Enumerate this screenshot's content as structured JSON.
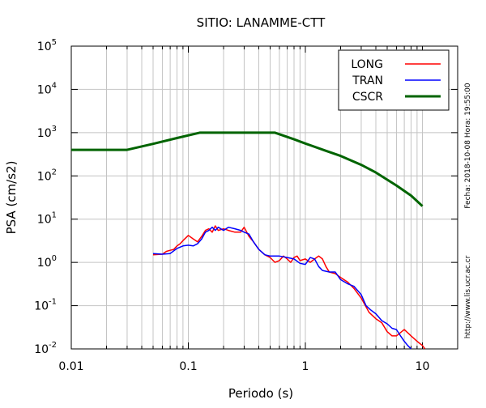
{
  "chart_data": {
    "type": "line",
    "title": "SITIO: LANAMME-CTT",
    "xlabel": "Periodo (s)",
    "ylabel": "PSA (cm/s2)",
    "x_scale": "log",
    "y_scale": "log",
    "xlim": [
      0.01,
      20
    ],
    "ylim": [
      0.01,
      100000
    ],
    "grid": true,
    "legend_position": "top-right",
    "x_ticks": [
      {
        "value": 0.01,
        "label": "0.01"
      },
      {
        "value": 0.1,
        "label": "0.1"
      },
      {
        "value": 1,
        "label": "1"
      },
      {
        "value": 10,
        "label": "10"
      }
    ],
    "y_ticks": [
      {
        "value": 0.01,
        "base": "10",
        "exp": "-2"
      },
      {
        "value": 0.1,
        "base": "10",
        "exp": "-1"
      },
      {
        "value": 1,
        "base": "10",
        "exp": "0"
      },
      {
        "value": 10,
        "base": "10",
        "exp": "1"
      },
      {
        "value": 100,
        "base": "10",
        "exp": "2"
      },
      {
        "value": 1000,
        "base": "10",
        "exp": "3"
      },
      {
        "value": 10000,
        "base": "10",
        "exp": "4"
      },
      {
        "value": 100000,
        "base": "10",
        "exp": "5"
      }
    ],
    "side_texts": [
      "Fecha: 2018-10-08 Hora: 19:55:00",
      "http://www.lis.ucr.ac.cr"
    ],
    "series": [
      {
        "name": "LONG",
        "color": "#ff0000",
        "width": 1.5,
        "points": [
          [
            0.05,
            1.5
          ],
          [
            0.06,
            1.55
          ],
          [
            0.065,
            1.8
          ],
          [
            0.07,
            1.9
          ],
          [
            0.075,
            2.0
          ],
          [
            0.08,
            2.4
          ],
          [
            0.085,
            2.7
          ],
          [
            0.09,
            3.2
          ],
          [
            0.1,
            4.2
          ],
          [
            0.11,
            3.5
          ],
          [
            0.12,
            3.0
          ],
          [
            0.13,
            4.0
          ],
          [
            0.14,
            5.5
          ],
          [
            0.15,
            6.0
          ],
          [
            0.16,
            5.0
          ],
          [
            0.17,
            7.0
          ],
          [
            0.18,
            5.5
          ],
          [
            0.2,
            6.0
          ],
          [
            0.22,
            5.5
          ],
          [
            0.25,
            5.0
          ],
          [
            0.28,
            5.0
          ],
          [
            0.3,
            6.5
          ],
          [
            0.33,
            4.0
          ],
          [
            0.36,
            3.0
          ],
          [
            0.4,
            2.0
          ],
          [
            0.45,
            1.5
          ],
          [
            0.5,
            1.3
          ],
          [
            0.55,
            1.0
          ],
          [
            0.6,
            1.1
          ],
          [
            0.65,
            1.4
          ],
          [
            0.7,
            1.2
          ],
          [
            0.75,
            1.0
          ],
          [
            0.8,
            1.3
          ],
          [
            0.85,
            1.4
          ],
          [
            0.9,
            1.1
          ],
          [
            1.0,
            1.2
          ],
          [
            1.1,
            1.0
          ],
          [
            1.2,
            1.2
          ],
          [
            1.3,
            1.4
          ],
          [
            1.4,
            1.2
          ],
          [
            1.5,
            0.8
          ],
          [
            1.6,
            0.6
          ],
          [
            1.8,
            0.55
          ],
          [
            2.0,
            0.45
          ],
          [
            2.3,
            0.35
          ],
          [
            2.6,
            0.25
          ],
          [
            3.0,
            0.15
          ],
          [
            3.5,
            0.07
          ],
          [
            4.0,
            0.05
          ],
          [
            4.5,
            0.04
          ],
          [
            5.0,
            0.025
          ],
          [
            5.5,
            0.02
          ],
          [
            6.0,
            0.02
          ],
          [
            7.0,
            0.028
          ],
          [
            8.0,
            0.02
          ],
          [
            9.0,
            0.015
          ],
          [
            10.0,
            0.012
          ],
          [
            10.5,
            0.01
          ]
        ]
      },
      {
        "name": "TRAN",
        "color": "#0000ff",
        "width": 1.5,
        "points": [
          [
            0.05,
            1.6
          ],
          [
            0.06,
            1.55
          ],
          [
            0.07,
            1.6
          ],
          [
            0.08,
            2.1
          ],
          [
            0.09,
            2.4
          ],
          [
            0.1,
            2.5
          ],
          [
            0.11,
            2.4
          ],
          [
            0.12,
            2.7
          ],
          [
            0.13,
            3.5
          ],
          [
            0.14,
            5.0
          ],
          [
            0.15,
            5.5
          ],
          [
            0.16,
            6.5
          ],
          [
            0.17,
            5.5
          ],
          [
            0.18,
            6.5
          ],
          [
            0.2,
            5.5
          ],
          [
            0.22,
            6.5
          ],
          [
            0.25,
            6.0
          ],
          [
            0.28,
            5.5
          ],
          [
            0.3,
            5.0
          ],
          [
            0.33,
            4.5
          ],
          [
            0.36,
            3.0
          ],
          [
            0.4,
            2.0
          ],
          [
            0.45,
            1.5
          ],
          [
            0.5,
            1.4
          ],
          [
            0.6,
            1.4
          ],
          [
            0.7,
            1.3
          ],
          [
            0.8,
            1.2
          ],
          [
            0.9,
            0.95
          ],
          [
            1.0,
            0.9
          ],
          [
            1.1,
            1.3
          ],
          [
            1.2,
            1.2
          ],
          [
            1.3,
            0.8
          ],
          [
            1.4,
            0.65
          ],
          [
            1.6,
            0.6
          ],
          [
            1.8,
            0.6
          ],
          [
            2.0,
            0.4
          ],
          [
            2.3,
            0.32
          ],
          [
            2.6,
            0.28
          ],
          [
            3.0,
            0.18
          ],
          [
            3.3,
            0.1
          ],
          [
            3.6,
            0.08
          ],
          [
            4.0,
            0.065
          ],
          [
            4.5,
            0.045
          ],
          [
            5.0,
            0.038
          ],
          [
            5.5,
            0.03
          ],
          [
            6.0,
            0.028
          ],
          [
            6.5,
            0.02
          ],
          [
            7.0,
            0.015
          ],
          [
            7.5,
            0.012
          ],
          [
            8.0,
            0.01
          ]
        ]
      },
      {
        "name": "CSCR",
        "color": "#006400",
        "width": 3,
        "points": [
          [
            0.01,
            400
          ],
          [
            0.03,
            400
          ],
          [
            0.05,
            550
          ],
          [
            0.08,
            750
          ],
          [
            0.125,
            1000
          ],
          [
            0.55,
            1000
          ],
          [
            0.8,
            700
          ],
          [
            1.0,
            560
          ],
          [
            1.5,
            380
          ],
          [
            2.0,
            290
          ],
          [
            3.0,
            180
          ],
          [
            4.0,
            120
          ],
          [
            6.0,
            60
          ],
          [
            8.0,
            35
          ],
          [
            10.0,
            20
          ]
        ]
      }
    ]
  }
}
